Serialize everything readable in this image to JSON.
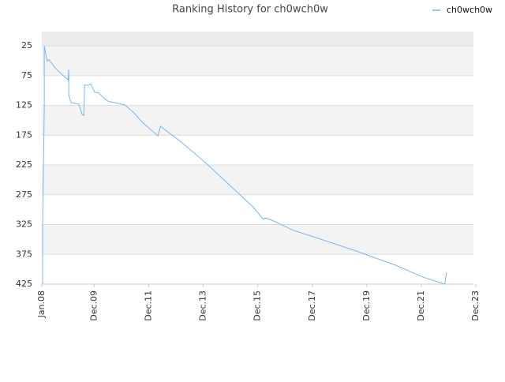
{
  "chart_data": {
    "type": "line",
    "title": "Ranking History for ch0wch0w",
    "x": [
      2008.03,
      2008.03,
      2008.09,
      2008.09,
      2008.14,
      2008.2,
      2008.26,
      2008.49,
      2008.67,
      2008.96,
      2008.99,
      2008.99,
      2009.07,
      2009.36,
      2009.48,
      2009.54,
      2009.57,
      2009.68,
      2009.8,
      2009.94,
      2010.09,
      2010.26,
      2010.43,
      2011.04,
      2011.39,
      2011.68,
      2012.26,
      2012.35,
      2013.13,
      2014.0,
      2014.87,
      2015.74,
      2016.12,
      2016.2,
      2016.46,
      2017.19,
      2018.06,
      2019.51,
      2020.96,
      2021.97,
      2022.78,
      2022.84
    ],
    "series": [
      {
        "name": "ch0wch0w",
        "color": "#7cb5ec",
        "values": [
          425,
          326,
          127,
          25,
          38,
          51,
          48,
          62,
          70,
          82,
          65,
          107,
          120,
          123,
          140,
          142,
          91,
          91,
          89,
          103,
          104,
          112,
          118,
          124,
          138,
          153,
          176,
          160,
          187,
          221,
          258,
          295,
          316,
          314,
          318,
          334,
          347,
          369,
          393,
          413,
          425,
          405
        ]
      }
    ],
    "ylim": [
      425,
      1
    ],
    "yticks": [
      25,
      75,
      125,
      175,
      225,
      275,
      325,
      375,
      425
    ],
    "xlim": [
      2008,
      2023.83
    ],
    "xticks": [
      {
        "value": 2008.0,
        "label": "Jan.08"
      },
      {
        "value": 2009.92,
        "label": "Dec.09"
      },
      {
        "value": 2011.92,
        "label": "Dec.11"
      },
      {
        "value": 2013.92,
        "label": "Dec.13"
      },
      {
        "value": 2015.92,
        "label": "Dec.15"
      },
      {
        "value": 2017.92,
        "label": "Dec.17"
      },
      {
        "value": 2019.92,
        "label": "Dec.19"
      },
      {
        "value": 2021.92,
        "label": "Dec.21"
      },
      {
        "value": 2023.92,
        "label": "Dec.23"
      }
    ],
    "grid": true,
    "legend": "top-right"
  }
}
